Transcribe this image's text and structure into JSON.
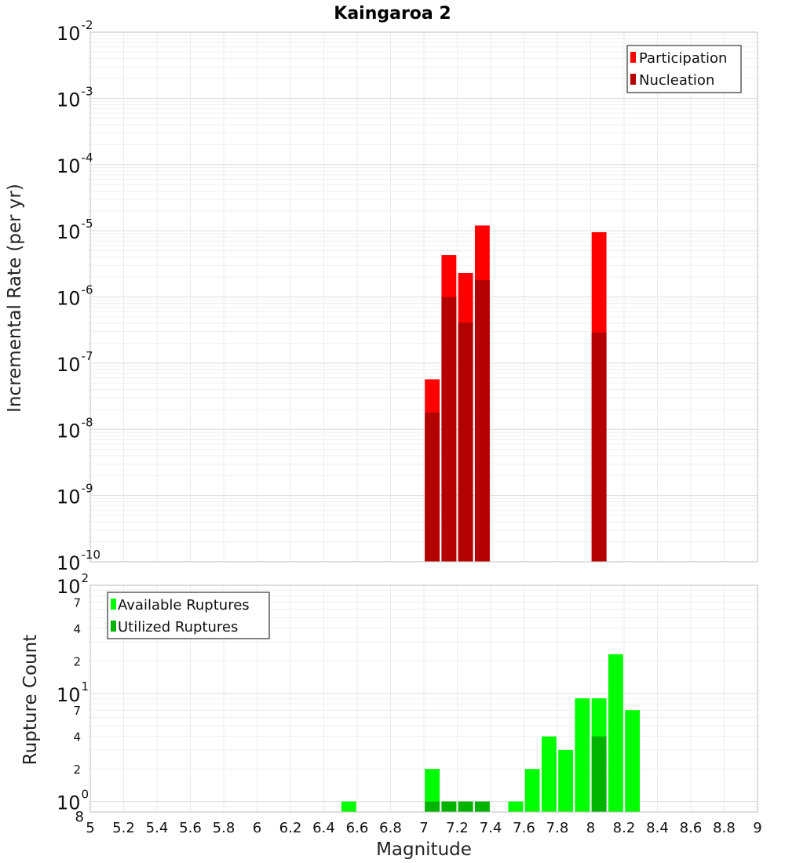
{
  "chart_data": {
    "title": "Kaingaroa 2",
    "xlabel": "Magnitude",
    "x_ticks": [
      "5",
      "5.2",
      "5.4",
      "5.6",
      "5.8",
      "6",
      "6.2",
      "6.4",
      "6.6",
      "6.8",
      "7",
      "7.2",
      "7.4",
      "7.6",
      "7.8",
      "8",
      "8.2",
      "8.4",
      "8.6",
      "8.8",
      "9"
    ],
    "xlim": [
      5,
      9
    ],
    "bin_width": 0.1,
    "top": {
      "type": "bar",
      "ylabel": "Incremental Rate (per yr)",
      "yscale": "log",
      "ylim": [
        1e-10,
        0.01
      ],
      "y_tick_base": "10",
      "y_tick_exponents": [
        "-10",
        "-9",
        "-8",
        "-7",
        "-6",
        "-5",
        "-4",
        "-3",
        "-2"
      ],
      "legend": [
        "Participation",
        "Nucleation"
      ],
      "series": [
        {
          "name": "Participation",
          "color": "#ff0000",
          "points": [
            {
              "x": 7.05,
              "y": 5.7e-08
            },
            {
              "x": 7.15,
              "y": 4.3e-06
            },
            {
              "x": 7.25,
              "y": 2.3e-06
            },
            {
              "x": 7.35,
              "y": 1.2e-05
            },
            {
              "x": 8.05,
              "y": 9.5e-06
            }
          ]
        },
        {
          "name": "Nucleation",
          "color": "#b30000",
          "points": [
            {
              "x": 7.05,
              "y": 1.8e-08
            },
            {
              "x": 7.15,
              "y": 1e-06
            },
            {
              "x": 7.25,
              "y": 4.1e-07
            },
            {
              "x": 7.35,
              "y": 1.8e-06
            },
            {
              "x": 8.05,
              "y": 2.9e-07
            }
          ]
        }
      ]
    },
    "bottom": {
      "type": "bar",
      "ylabel": "Rupture Count",
      "yscale": "log",
      "ylim": [
        0.8,
        100
      ],
      "y_major_ticks": [
        {
          "value": 1,
          "base": "10",
          "exp": "0"
        },
        {
          "value": 10,
          "base": "10",
          "exp": "1"
        },
        {
          "value": 100,
          "base": "10",
          "exp": "2"
        }
      ],
      "y_minor_ticks": [
        {
          "value": 0.8,
          "label": "8"
        },
        {
          "value": 2,
          "label": "2"
        },
        {
          "value": 4,
          "label": "4"
        },
        {
          "value": 7,
          "label": "7"
        },
        {
          "value": 20,
          "label": "2"
        },
        {
          "value": 40,
          "label": "4"
        },
        {
          "value": 70,
          "label": "7"
        }
      ],
      "legend": [
        "Available Ruptures",
        "Utilized Ruptures"
      ],
      "series": [
        {
          "name": "Available Ruptures",
          "color": "#00ff00",
          "points": [
            {
              "x": 6.55,
              "y": 1
            },
            {
              "x": 7.05,
              "y": 2
            },
            {
              "x": 7.15,
              "y": 1
            },
            {
              "x": 7.25,
              "y": 1
            },
            {
              "x": 7.35,
              "y": 1
            },
            {
              "x": 7.55,
              "y": 1
            },
            {
              "x": 7.65,
              "y": 2
            },
            {
              "x": 7.75,
              "y": 4
            },
            {
              "x": 7.85,
              "y": 3
            },
            {
              "x": 7.95,
              "y": 9
            },
            {
              "x": 8.05,
              "y": 9
            },
            {
              "x": 8.15,
              "y": 23
            },
            {
              "x": 8.25,
              "y": 7
            }
          ]
        },
        {
          "name": "Utilized Ruptures",
          "color": "#00b300",
          "points": [
            {
              "x": 7.05,
              "y": 1
            },
            {
              "x": 7.15,
              "y": 1
            },
            {
              "x": 7.25,
              "y": 1
            },
            {
              "x": 7.35,
              "y": 1
            },
            {
              "x": 8.05,
              "y": 4
            }
          ]
        }
      ]
    }
  }
}
